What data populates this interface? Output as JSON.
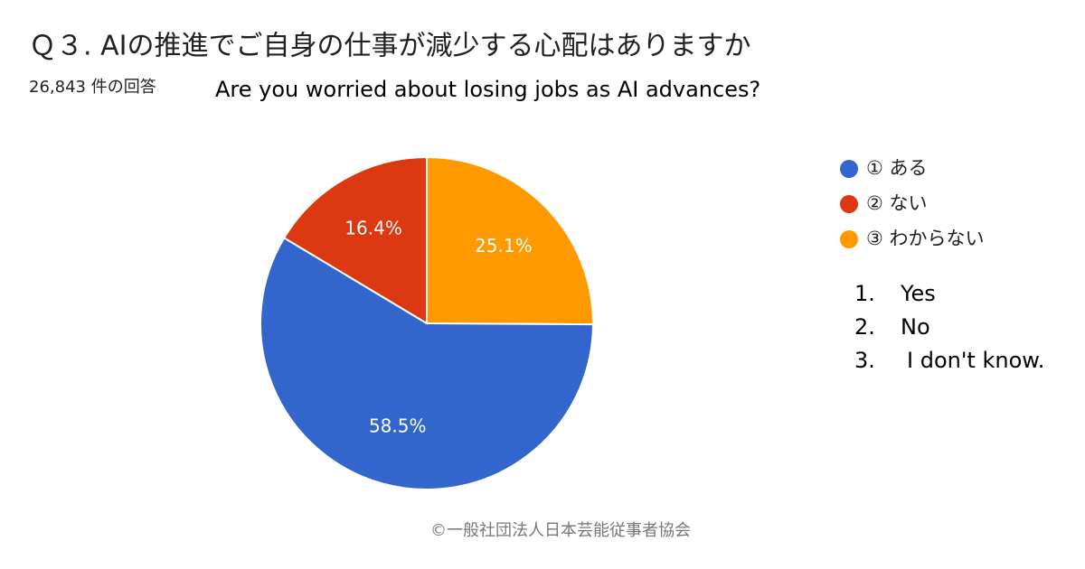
{
  "chart_data": {
    "type": "pie",
    "title": "Ｑ３. AIの推進でご自身の仕事が減少する心配はありますか",
    "subtitle": "26,843 件の回答",
    "english_subtitle": "Are you worried about losing jobs as AI advances?",
    "categories": [
      "① ある",
      "② ない",
      "③ わからない"
    ],
    "values": [
      58.5,
      16.4,
      25.1
    ],
    "value_labels": [
      "58.5%",
      "16.4%",
      "25.1%"
    ],
    "colors": [
      "#3366cc",
      "#dc3912",
      "#ff9900"
    ],
    "legend": "right",
    "english_legend": [
      {
        "number": "1.",
        "text": "Yes"
      },
      {
        "number": "2.",
        "text": "No"
      },
      {
        "number": "3.",
        "text": "I don't know."
      }
    ],
    "footer": "©一般社団法人日本芸能従事者協会"
  }
}
